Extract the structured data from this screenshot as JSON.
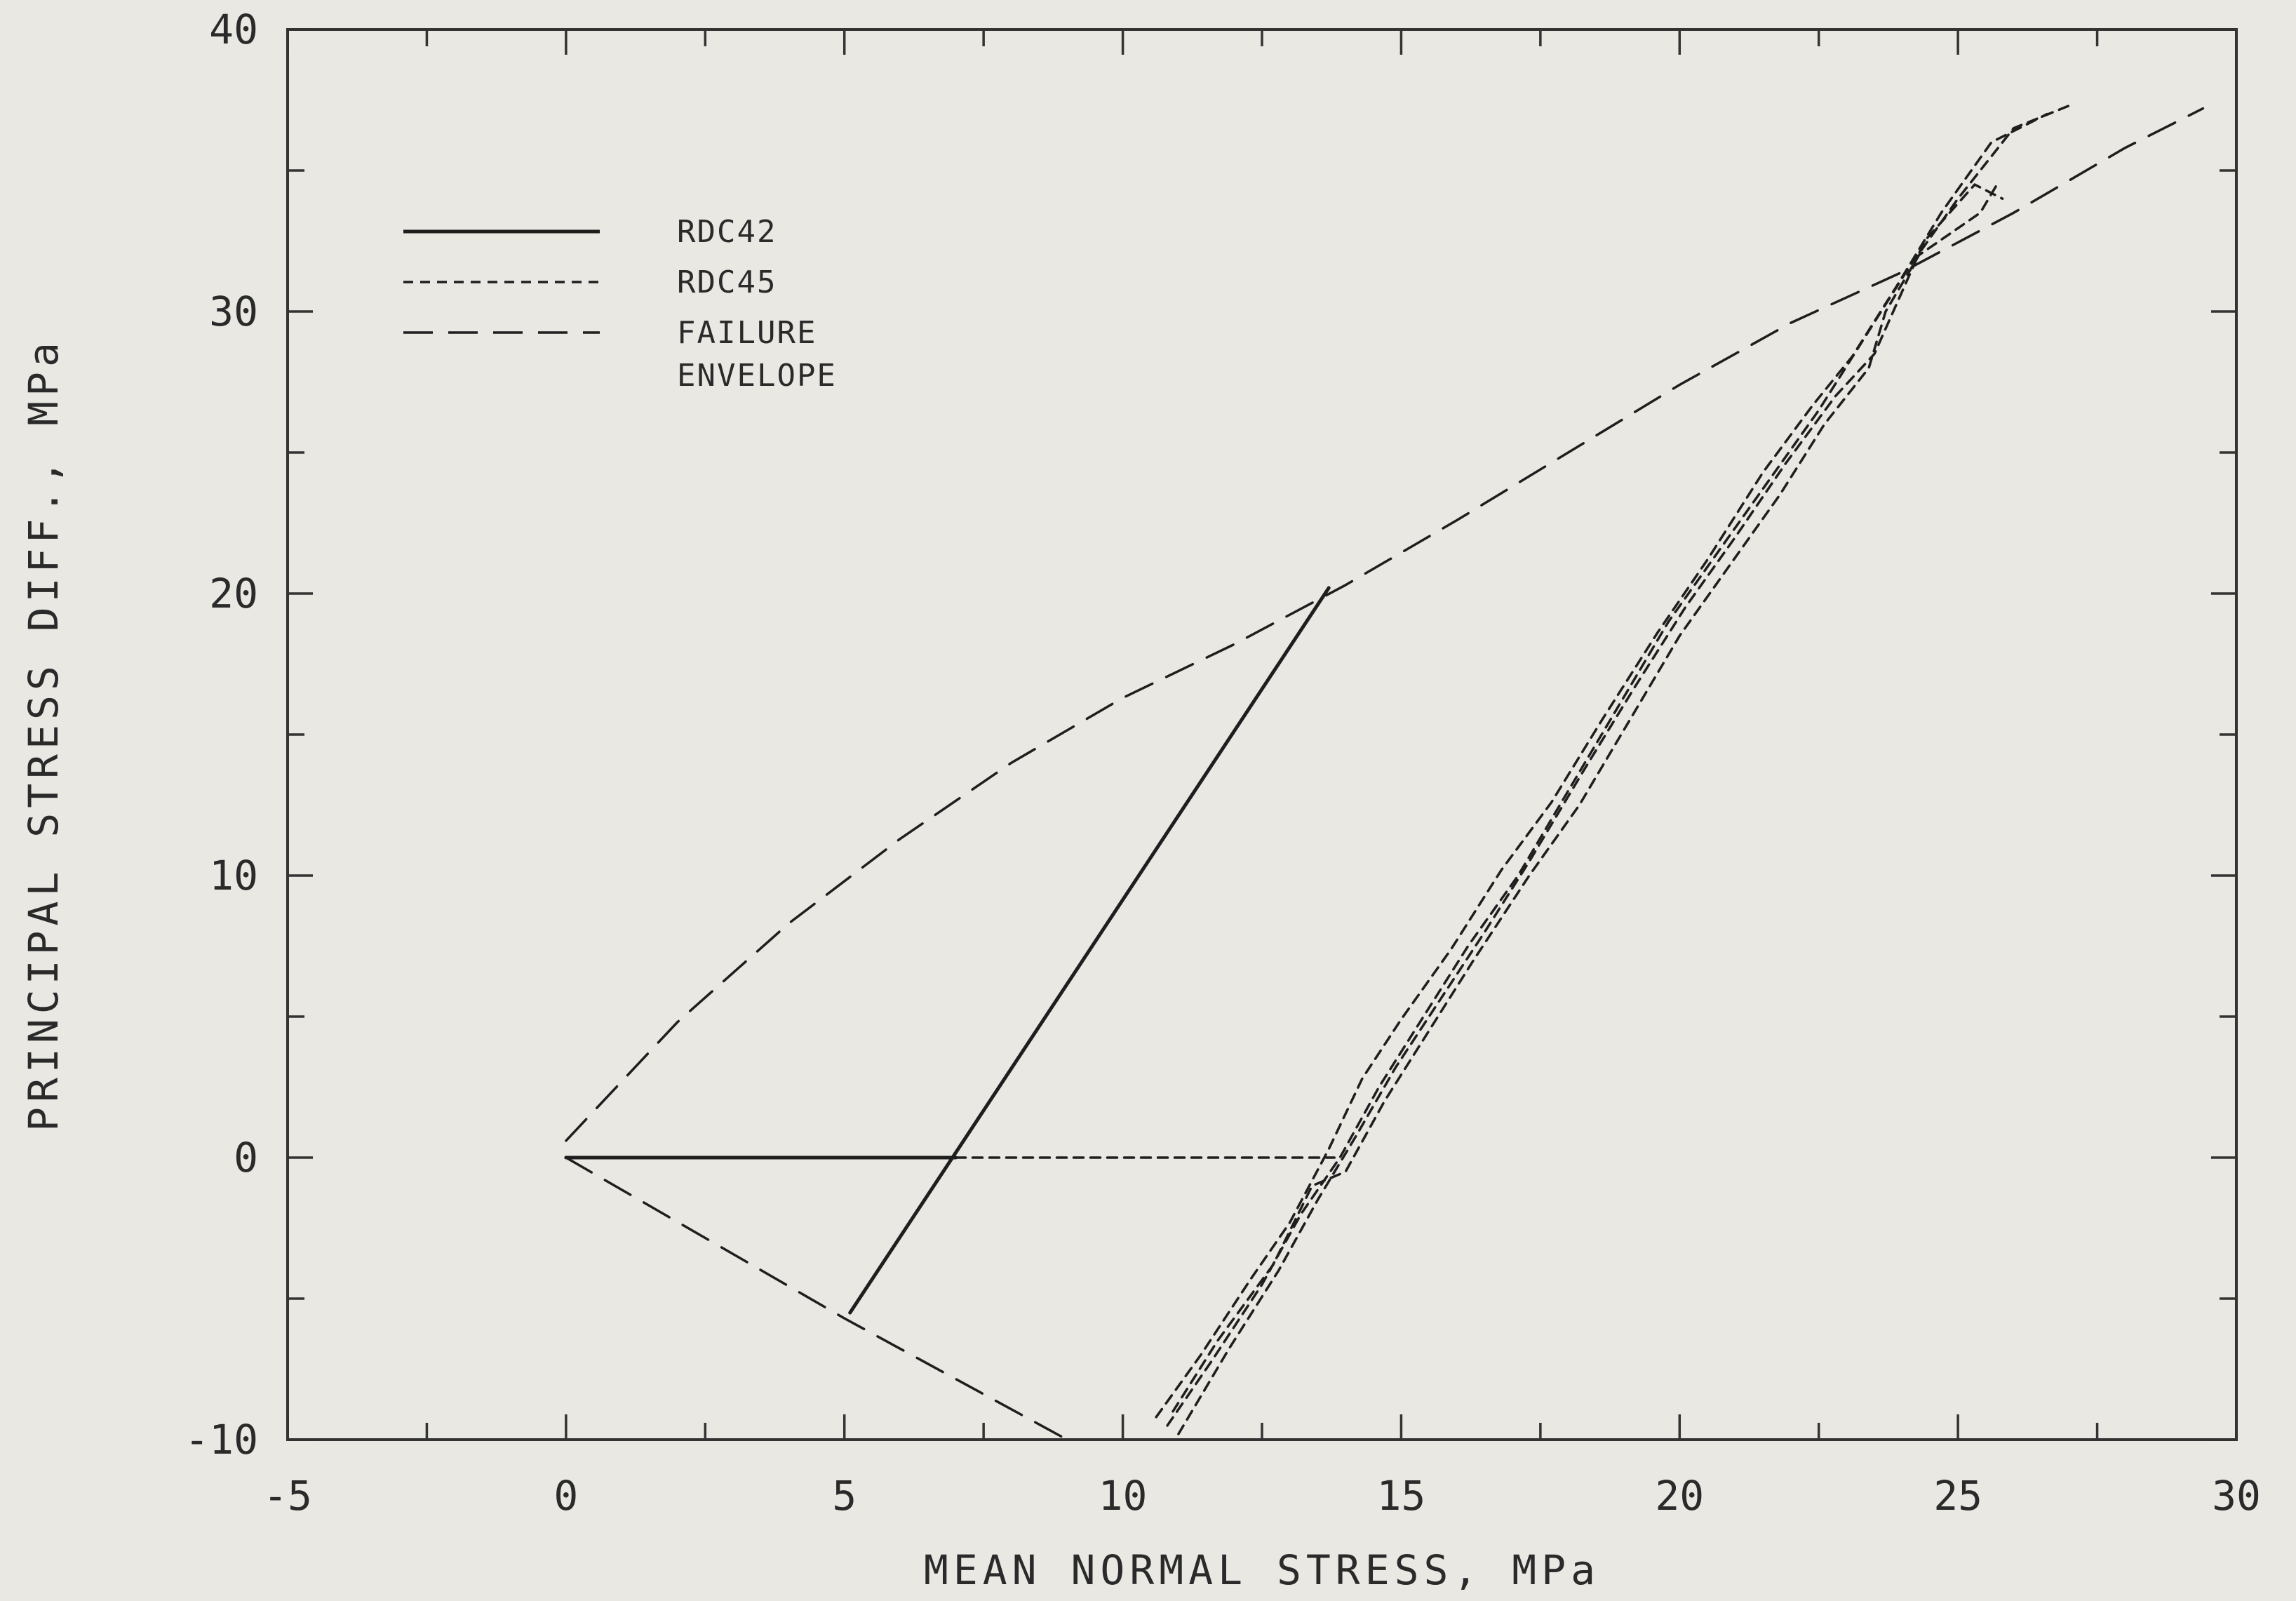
{
  "chart_data": {
    "type": "line",
    "title": "",
    "xlabel": "MEAN NORMAL STRESS, MPa",
    "ylabel": "PRINCIPAL STRESS DIFF., MPa",
    "xlim": [
      -5,
      30
    ],
    "ylim": [
      -10,
      40
    ],
    "x_ticks": [
      -5,
      0,
      5,
      10,
      15,
      20,
      25,
      30
    ],
    "y_ticks": [
      -10,
      0,
      10,
      20,
      30,
      40
    ],
    "x_tick_labels": [
      "-5",
      "0",
      "5",
      "10",
      "15",
      "20",
      "25",
      "30"
    ],
    "y_tick_labels": [
      "-10",
      "0",
      "10",
      "20",
      "30",
      "40"
    ],
    "grid": false,
    "legend_position": "top-left",
    "legend": [
      {
        "label": "RDC42",
        "style": "solid"
      },
      {
        "label": "RDC45",
        "style": "dotted"
      },
      {
        "label": "FAILURE",
        "style": "dashed"
      },
      {
        "label": "ENVELOPE",
        "style": "none"
      }
    ],
    "series": [
      {
        "name": "RDC42",
        "style": "solid",
        "paths": [
          [
            [
              0,
              0
            ],
            [
              7,
              0
            ]
          ],
          [
            [
              5.1,
              -5.5
            ],
            [
              13.7,
              20.2
            ]
          ]
        ]
      },
      {
        "name": "RDC45",
        "style": "dotted",
        "paths": [
          [
            [
              7,
              0
            ],
            [
              13.8,
              0
            ]
          ],
          [
            [
              10.8,
              -9.5
            ],
            [
              11.6,
              -7.2
            ],
            [
              12.5,
              -4.5
            ],
            [
              13.2,
              -2.0
            ],
            [
              13.9,
              0.0
            ],
            [
              14.6,
              2.5
            ],
            [
              15.4,
              5.0
            ],
            [
              16.2,
              7.5
            ],
            [
              17.1,
              10.0
            ],
            [
              18.0,
              13.0
            ],
            [
              18.9,
              16.0
            ],
            [
              19.8,
              19.0
            ],
            [
              20.7,
              21.5
            ],
            [
              21.6,
              24.0
            ],
            [
              22.5,
              26.5
            ],
            [
              23.3,
              29.0
            ],
            [
              24.1,
              31.5
            ],
            [
              25.0,
              34.0
            ],
            [
              26.0,
              36.5
            ],
            [
              27.0,
              37.3
            ]
          ],
          [
            [
              10.6,
              -9.2
            ],
            [
              11.4,
              -7.0
            ],
            [
              12.3,
              -4.3
            ],
            [
              13.0,
              -2.3
            ],
            [
              13.7,
              0.3
            ],
            [
              14.3,
              2.8
            ],
            [
              15.0,
              4.9
            ],
            [
              15.9,
              7.4
            ],
            [
              16.8,
              10.2
            ],
            [
              17.7,
              12.6
            ],
            [
              18.6,
              15.5
            ],
            [
              19.6,
              18.6
            ],
            [
              20.5,
              21.2
            ],
            [
              21.5,
              24.3
            ],
            [
              22.4,
              26.7
            ],
            [
              23.1,
              28.4
            ],
            [
              23.9,
              30.9
            ],
            [
              24.7,
              33.5
            ],
            [
              25.6,
              36.0
            ],
            [
              26.6,
              37.0
            ]
          ],
          [
            [
              11.0,
              -9.8
            ],
            [
              11.9,
              -6.8
            ],
            [
              12.8,
              -4.0
            ],
            [
              13.5,
              -1.5
            ],
            [
              14.2,
              0.8
            ],
            [
              14.9,
              3.2
            ],
            [
              15.7,
              5.6
            ],
            [
              16.5,
              8.0
            ],
            [
              17.3,
              10.5
            ],
            [
              18.3,
              13.8
            ],
            [
              19.2,
              16.7
            ],
            [
              20.1,
              19.5
            ],
            [
              21.0,
              22.0
            ],
            [
              21.9,
              24.6
            ],
            [
              22.8,
              27.0
            ],
            [
              23.5,
              28.5
            ],
            [
              24.4,
              32.5
            ],
            [
              25.3,
              34.5
            ],
            [
              25.8,
              34.0
            ]
          ],
          [
            [
              10.9,
              -9.0
            ],
            [
              11.7,
              -6.5
            ],
            [
              12.7,
              -3.8
            ],
            [
              13.4,
              -1.0
            ],
            [
              14.0,
              -0.5
            ],
            [
              14.7,
              2.0
            ],
            [
              15.5,
              4.5
            ],
            [
              16.3,
              7.0
            ],
            [
              17.3,
              10.0
            ],
            [
              18.2,
              12.5
            ],
            [
              19.1,
              15.5
            ],
            [
              20.0,
              18.5
            ],
            [
              20.9,
              21.0
            ],
            [
              21.8,
              23.5
            ],
            [
              22.6,
              26.0
            ],
            [
              23.4,
              28.0
            ],
            [
              23.7,
              30.0
            ],
            [
              24.3,
              32.0
            ],
            [
              25.4,
              33.5
            ],
            [
              25.7,
              34.5
            ]
          ]
        ]
      },
      {
        "name": "FAILURE ENVELOPE",
        "style": "dashed",
        "paths": [
          [
            [
              0,
              0.6
            ],
            [
              2,
              4.8
            ],
            [
              4,
              8.3
            ],
            [
              6,
              11.3
            ],
            [
              8,
              14.0
            ],
            [
              10,
              16.3
            ],
            [
              12,
              18.2
            ],
            [
              14,
              20.3
            ],
            [
              16,
              22.6
            ],
            [
              18,
              25.0
            ],
            [
              20,
              27.4
            ],
            [
              22,
              29.6
            ],
            [
              24,
              31.4
            ],
            [
              26,
              33.5
            ],
            [
              28,
              35.8
            ],
            [
              29.4,
              37.2
            ]
          ],
          [
            [
              0,
              0
            ],
            [
              5,
              -5.7
            ],
            [
              9,
              -10
            ]
          ]
        ]
      }
    ]
  }
}
